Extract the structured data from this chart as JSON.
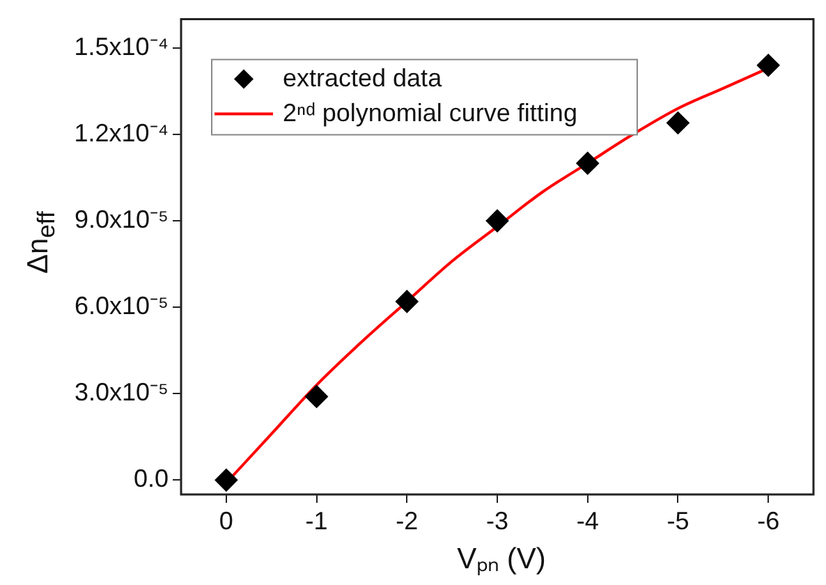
{
  "chart_data": {
    "type": "scatter",
    "xlabel": "Vₚₙ (V)",
    "ylabel": "Δn$_{eff}$",
    "xlim": [
      0.5,
      -6.5
    ],
    "xticks": [
      0,
      -1,
      -2,
      -3,
      -4,
      -5,
      -6
    ],
    "ylim": [
      -5e-06,
      0.00016
    ],
    "yticks": [
      {
        "value": 0,
        "label": "0.0"
      },
      {
        "value": 3e-05,
        "label": "3.0x10⁻⁵"
      },
      {
        "value": 6e-05,
        "label": "6.0x10⁻⁵"
      },
      {
        "value": 9e-05,
        "label": "9.0x10⁻⁵"
      },
      {
        "value": 0.00012,
        "label": "1.2x10⁻⁴"
      },
      {
        "value": 0.00015,
        "label": "1.5x10⁻⁴"
      }
    ],
    "grid": false,
    "legend": "top left",
    "series": [
      {
        "name": "extracted data",
        "marker": "diamond",
        "color": "#000000",
        "x": [
          0,
          -1,
          -2,
          -3,
          -4,
          -5,
          -6
        ],
        "values": [
          0,
          2.9e-05,
          6.2e-05,
          9e-05,
          0.00011,
          0.000124,
          0.000144
        ]
      },
      {
        "name": "2ⁿᵈ polynomial curve fitting",
        "type": "line",
        "marker": "none",
        "color": "#ff0000",
        "x": [
          0,
          -0.5,
          -1,
          -1.5,
          -2,
          -2.5,
          -3,
          -3.5,
          -4,
          -4.5,
          -5,
          -5.5,
          -6
        ],
        "values": [
          -1e-06,
          1.6e-05,
          3.3e-05,
          4.8e-05,
          6.2e-05,
          7.6e-05,
          8.8e-05,
          0.0001,
          0.00011,
          0.00012,
          0.000129,
          0.000136,
          0.000143
        ]
      }
    ]
  }
}
